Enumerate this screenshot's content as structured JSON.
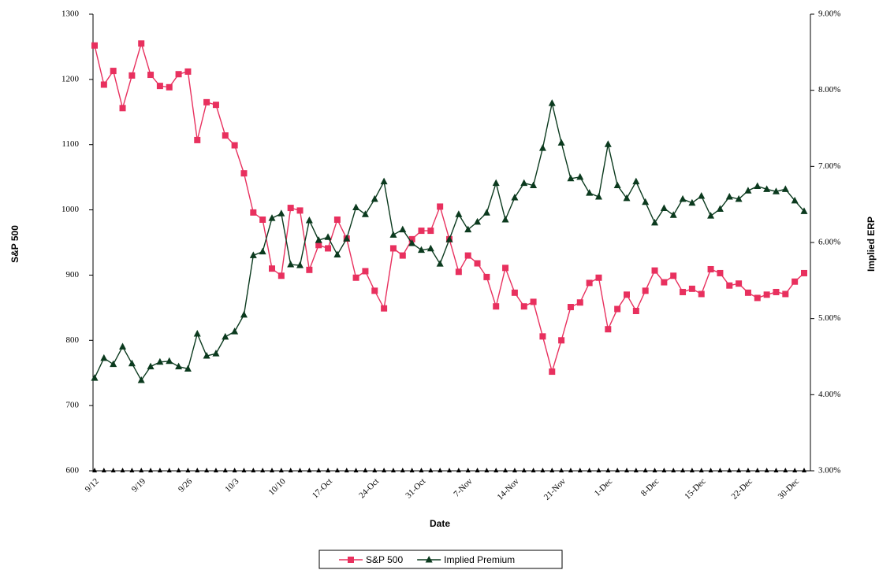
{
  "chart_data": {
    "type": "line",
    "x_label": "Date",
    "y_label": "S&P 500",
    "y2_label": "Implied ERP",
    "categories": [
      "9/12",
      null,
      null,
      null,
      null,
      "9/19",
      null,
      null,
      null,
      null,
      "9/26",
      null,
      null,
      null,
      null,
      "10/3",
      null,
      null,
      null,
      null,
      "10/10",
      null,
      null,
      null,
      null,
      "17-Oct",
      null,
      null,
      null,
      null,
      "24-Oct",
      null,
      null,
      null,
      null,
      "31-Oct",
      null,
      null,
      null,
      null,
      "7-Nov",
      null,
      null,
      null,
      null,
      "14-Nov",
      null,
      null,
      null,
      null,
      "21-Nov",
      null,
      null,
      null,
      null,
      "1-Dec",
      null,
      null,
      null,
      null,
      "8-Dec",
      null,
      null,
      null,
      null,
      "15-Dec",
      null,
      null,
      null,
      null,
      "22-Dec",
      null,
      null,
      null,
      null,
      "30-Dec",
      null
    ],
    "series": [
      {
        "name": "S&P 500",
        "color": "#e8305e",
        "marker": "square",
        "axis": "y",
        "values": [
          1252,
          1192,
          1213,
          1156,
          1206,
          1255,
          1207,
          1190,
          1188,
          1208,
          1212,
          1107,
          1165,
          1161,
          1114,
          1099,
          1056,
          996,
          985,
          910,
          899,
          1003,
          999,
          908,
          946,
          941,
          985,
          956,
          896,
          906,
          876,
          849,
          941,
          930,
          955,
          968,
          968,
          1005,
          955,
          905,
          930,
          918,
          897,
          852,
          911,
          873,
          852,
          859,
          806,
          752,
          800,
          851,
          858,
          888,
          896,
          817,
          848,
          870,
          845,
          876,
          907,
          889,
          899,
          874,
          879,
          871,
          909,
          903,
          884,
          887,
          873,
          865,
          870,
          874,
          871,
          890,
          903
        ]
      },
      {
        "name": "Implied Premium",
        "color": "#0b3a1e",
        "marker": "triangle",
        "axis": "y2",
        "values": [
          4.22,
          4.48,
          4.4,
          4.63,
          4.41,
          4.19,
          4.37,
          4.43,
          4.44,
          4.37,
          4.34,
          4.8,
          4.51,
          4.54,
          4.76,
          4.83,
          5.05,
          5.83,
          5.88,
          6.32,
          6.38,
          5.71,
          5.7,
          6.29,
          6.03,
          6.07,
          5.84,
          6.05,
          6.46,
          6.37,
          6.57,
          6.8,
          6.1,
          6.17,
          5.99,
          5.9,
          5.92,
          5.72,
          6.04,
          6.37,
          6.17,
          6.27,
          6.39,
          6.78,
          6.3,
          6.59,
          6.78,
          6.75,
          7.24,
          7.83,
          7.31,
          6.84,
          6.86,
          6.65,
          6.6,
          7.29,
          6.75,
          6.58,
          6.8,
          6.53,
          6.26,
          6.45,
          6.36,
          6.57,
          6.52,
          6.61,
          6.35,
          6.44,
          6.6,
          6.57,
          6.68,
          6.74,
          6.7,
          6.67,
          6.7,
          6.55,
          6.41
        ]
      }
    ],
    "ylim": [
      600,
      1300
    ],
    "yticks": [
      600,
      700,
      800,
      900,
      1000,
      1100,
      1200,
      1300
    ],
    "y2lim": [
      3,
      9
    ],
    "y2ticks": [
      {
        "value": 3,
        "label": "3.00%"
      },
      {
        "value": 4,
        "label": "4.00%"
      },
      {
        "value": 5,
        "label": "5.00%"
      },
      {
        "value": 6,
        "label": "6.00%"
      },
      {
        "value": 7,
        "label": "7.00%"
      },
      {
        "value": 8,
        "label": "8.00%"
      },
      {
        "value": 9,
        "label": "9.00%"
      }
    ],
    "grid": false,
    "legend": "bottom"
  }
}
